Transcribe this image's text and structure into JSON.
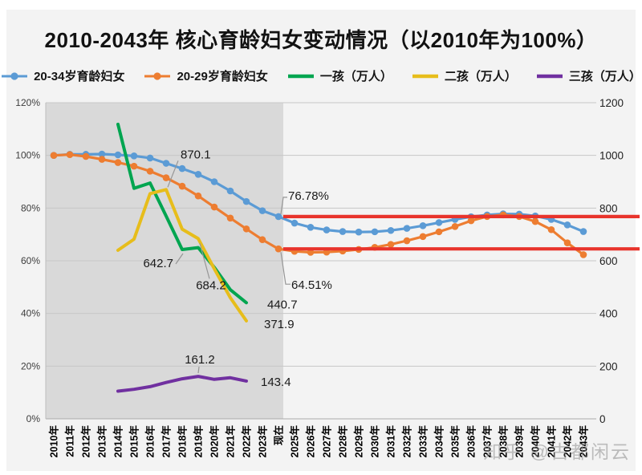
{
  "title": "2010-2043年 核心育龄妇女变动情况（以2010年为100%）",
  "watermark": "知乎 @古都闲云",
  "chart_data": {
    "type": "line",
    "title": "2010-2043年 核心育龄妇女变动情况（以2010年为100%）",
    "categories": [
      "2010年",
      "2011年",
      "2012年",
      "2013年",
      "2014年",
      "2015年",
      "2016年",
      "2017年",
      "2018年",
      "2019年",
      "2020年",
      "2021年",
      "2022年",
      "2023年",
      "现在",
      "2025年",
      "2026年",
      "2027年",
      "2028年",
      "2029年",
      "2030年",
      "2031年",
      "2032年",
      "2033年",
      "2034年",
      "2035年",
      "2036年",
      "2037年",
      "2038年",
      "2039年",
      "2040年",
      "2041年",
      "2042年",
      "2043年"
    ],
    "left_axis": {
      "unit": "%",
      "min": 0,
      "max": 120,
      "ticks": [
        "120%",
        "100%",
        "80%",
        "60%",
        "40%",
        "20%",
        "0%"
      ]
    },
    "right_axis": {
      "unit": "万人",
      "min": 0,
      "max": 1200,
      "ticks": [
        "1200",
        "1000",
        "800",
        "600",
        "400",
        "200",
        "0"
      ]
    },
    "shaded_region": {
      "from": "2010年",
      "to": "现在",
      "color": "#d9d9d9"
    },
    "reference_lines": [
      {
        "value": 76.78,
        "color": "#e8342c"
      },
      {
        "value": 64.51,
        "color": "#e8342c"
      }
    ],
    "series": [
      {
        "name": "20-34岁育龄妇女",
        "axis": "left",
        "color": "#5b9bd5",
        "marker": "circle",
        "values": [
          100,
          100.4,
          100.4,
          100.5,
          100.2,
          99.8,
          99.0,
          97.0,
          95.0,
          92.8,
          90.0,
          86.5,
          82.5,
          79.0,
          76.78,
          74.3,
          72.7,
          71.7,
          71.1,
          70.9,
          71.0,
          71.5,
          72.3,
          73.3,
          74.5,
          75.7,
          76.7,
          77.4,
          77.8,
          77.7,
          77.0,
          75.7,
          73.6,
          71.1
        ]
      },
      {
        "name": "20-29岁育龄妇女",
        "axis": "left",
        "color": "#ed7d31",
        "marker": "circle",
        "values": [
          100,
          100.3,
          99.6,
          98.5,
          97.3,
          95.9,
          94.0,
          91.5,
          88.3,
          84.6,
          80.4,
          76.2,
          72.1,
          68.0,
          64.51,
          63.6,
          63.2,
          63.3,
          63.7,
          64.3,
          65.1,
          66.2,
          67.6,
          69.2,
          71.0,
          73.0,
          75.2,
          76.8,
          77.4,
          76.8,
          74.9,
          71.8,
          66.8,
          62.3
        ]
      },
      {
        "name": "一孩（万人）",
        "axis": "right",
        "color": "#00a550",
        "marker": "none",
        "values": [
          null,
          null,
          null,
          null,
          1118,
          875,
          895,
          770,
          642.7,
          650,
          575,
          490,
          440.7,
          null,
          null,
          null,
          null,
          null,
          null,
          null,
          null,
          null,
          null,
          null,
          null,
          null,
          null,
          null,
          null,
          null,
          null,
          null,
          null,
          null
        ]
      },
      {
        "name": "二孩（万人）",
        "axis": "right",
        "color": "#e7bd1b",
        "marker": "none",
        "values": [
          null,
          null,
          null,
          null,
          640,
          682,
          855,
          870.1,
          720,
          684.2,
          570,
          460,
          371.9,
          null,
          null,
          null,
          null,
          null,
          null,
          null,
          null,
          null,
          null,
          null,
          null,
          null,
          null,
          null,
          null,
          null,
          null,
          null,
          null,
          null
        ]
      },
      {
        "name": "三孩（万人）",
        "axis": "right",
        "color": "#7030a0",
        "marker": "none",
        "values": [
          null,
          null,
          null,
          null,
          105,
          112,
          122,
          138,
          152,
          161.2,
          150,
          156,
          143.4,
          null,
          null,
          null,
          null,
          null,
          null,
          null,
          null,
          null,
          null,
          null,
          null,
          null,
          null,
          null,
          null,
          null,
          null,
          null,
          null,
          null
        ]
      }
    ],
    "annotations": [
      {
        "text": "870.1",
        "series": 3,
        "category": "2017年"
      },
      {
        "text": "76.78%",
        "series": 0,
        "category": "现在"
      },
      {
        "text": "64.51%",
        "series": 1,
        "category": "现在"
      },
      {
        "text": "642.7",
        "series": 2,
        "category": "2018年"
      },
      {
        "text": "684.2",
        "series": 3,
        "category": "2019年"
      },
      {
        "text": "440.7",
        "series": 2,
        "category": "2022年"
      },
      {
        "text": "371.9",
        "series": 3,
        "category": "2022年"
      },
      {
        "text": "161.2",
        "series": 4,
        "category": "2019年"
      },
      {
        "text": "143.4",
        "series": 4,
        "category": "2022年"
      }
    ]
  }
}
